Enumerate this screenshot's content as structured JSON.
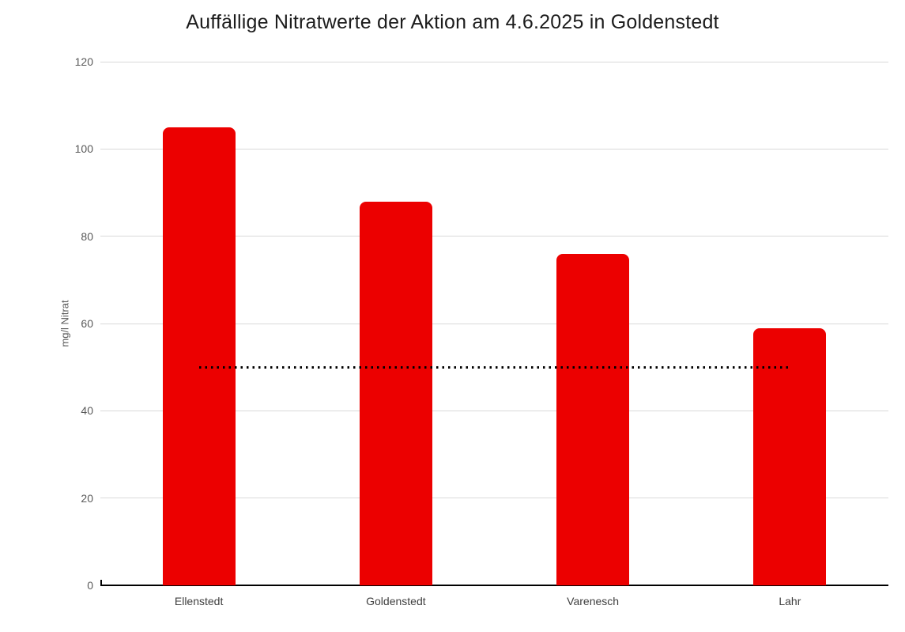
{
  "chart_data": {
    "type": "bar",
    "title": "Auffällige Nitratwerte der Aktion am 4.6.2025 in Goldenstedt",
    "categories": [
      "Ellenstedt",
      "Goldenstedt",
      "Varenesch",
      "Lahr"
    ],
    "values": [
      105,
      88,
      76,
      59
    ],
    "xlabel": "",
    "ylabel": "mg/l Nitrat",
    "ylim": [
      0,
      120
    ],
    "yticks": [
      0,
      20,
      40,
      60,
      80,
      100,
      120
    ],
    "grid": true,
    "legend": "none",
    "reference_line": {
      "value": 50,
      "style": "dotted",
      "spans": "first-bar-center-to-last-bar-center"
    },
    "colors": {
      "bar": "#ec0000",
      "gridline": "#d9d9d9",
      "axis_line": "#000000",
      "reference_line": "#000000",
      "tick_label": "#595959",
      "category_label": "#3f3f3f",
      "title": "#1c1c1c",
      "background": "#ffffff"
    }
  }
}
